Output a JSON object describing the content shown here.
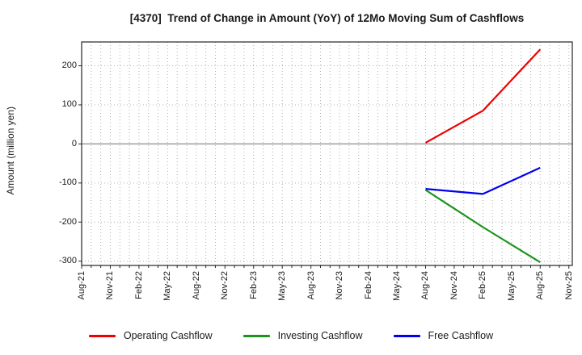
{
  "title": "[4370]  Trend of Change in Amount (YoY) of 12Mo Moving Sum of Cashflows",
  "y_axis": {
    "label": "Amount (million yen)",
    "ticks": [
      200,
      100,
      0,
      -100,
      -200,
      -300
    ]
  },
  "x_axis": {
    "ticks": [
      "Aug-21",
      "Nov-21",
      "Feb-22",
      "May-22",
      "Aug-22",
      "Nov-22",
      "Feb-23",
      "May-23",
      "Aug-23",
      "Nov-23",
      "Feb-24",
      "May-24",
      "Aug-24",
      "Nov-24",
      "Feb-25",
      "May-25",
      "Aug-25",
      "Nov-25"
    ]
  },
  "colors": {
    "operating": "#ee0000",
    "investing": "#1b941b",
    "free": "#0000ee",
    "grid": "#b0b0b0",
    "zero_line": "#8a8a8a",
    "border": "#262626",
    "text": "#1a1a1a"
  },
  "legend_position": "bottom",
  "chart_data": {
    "type": "line",
    "title": "[4370]  Trend of Change in Amount (YoY) of 12Mo Moving Sum of Cashflows",
    "xlabel": "",
    "ylabel": "Amount (million yen)",
    "ylim": [
      -311,
      261
    ],
    "y_ticks": [
      200,
      100,
      0,
      -100,
      -200,
      -300
    ],
    "x_ticks": [
      "Aug-21",
      "Nov-21",
      "Feb-22",
      "May-22",
      "Aug-22",
      "Nov-22",
      "Feb-23",
      "May-23",
      "Aug-23",
      "Nov-23",
      "Feb-24",
      "May-24",
      "Aug-24",
      "Nov-24",
      "Feb-25",
      "May-25",
      "Aug-25",
      "Nov-25"
    ],
    "grid": "dotted; vertical gridline every month, horizontal every 100; solid gray line at 0",
    "legend_position": "bottom",
    "series": [
      {
        "name": "Operating Cashflow",
        "color": "#ee0000",
        "points": [
          [
            "Aug-24",
            3
          ],
          [
            "Feb-25",
            85
          ],
          [
            "Aug-25",
            242
          ]
        ]
      },
      {
        "name": "Investing Cashflow",
        "color": "#1b941b",
        "points": [
          [
            "Aug-24",
            -118
          ],
          [
            "Feb-25",
            -213
          ],
          [
            "Aug-25",
            -303
          ]
        ]
      },
      {
        "name": "Free Cashflow",
        "color": "#0000ee",
        "points": [
          [
            "Aug-24",
            -115
          ],
          [
            "Feb-25",
            -128
          ],
          [
            "Aug-25",
            -61
          ]
        ]
      }
    ]
  }
}
